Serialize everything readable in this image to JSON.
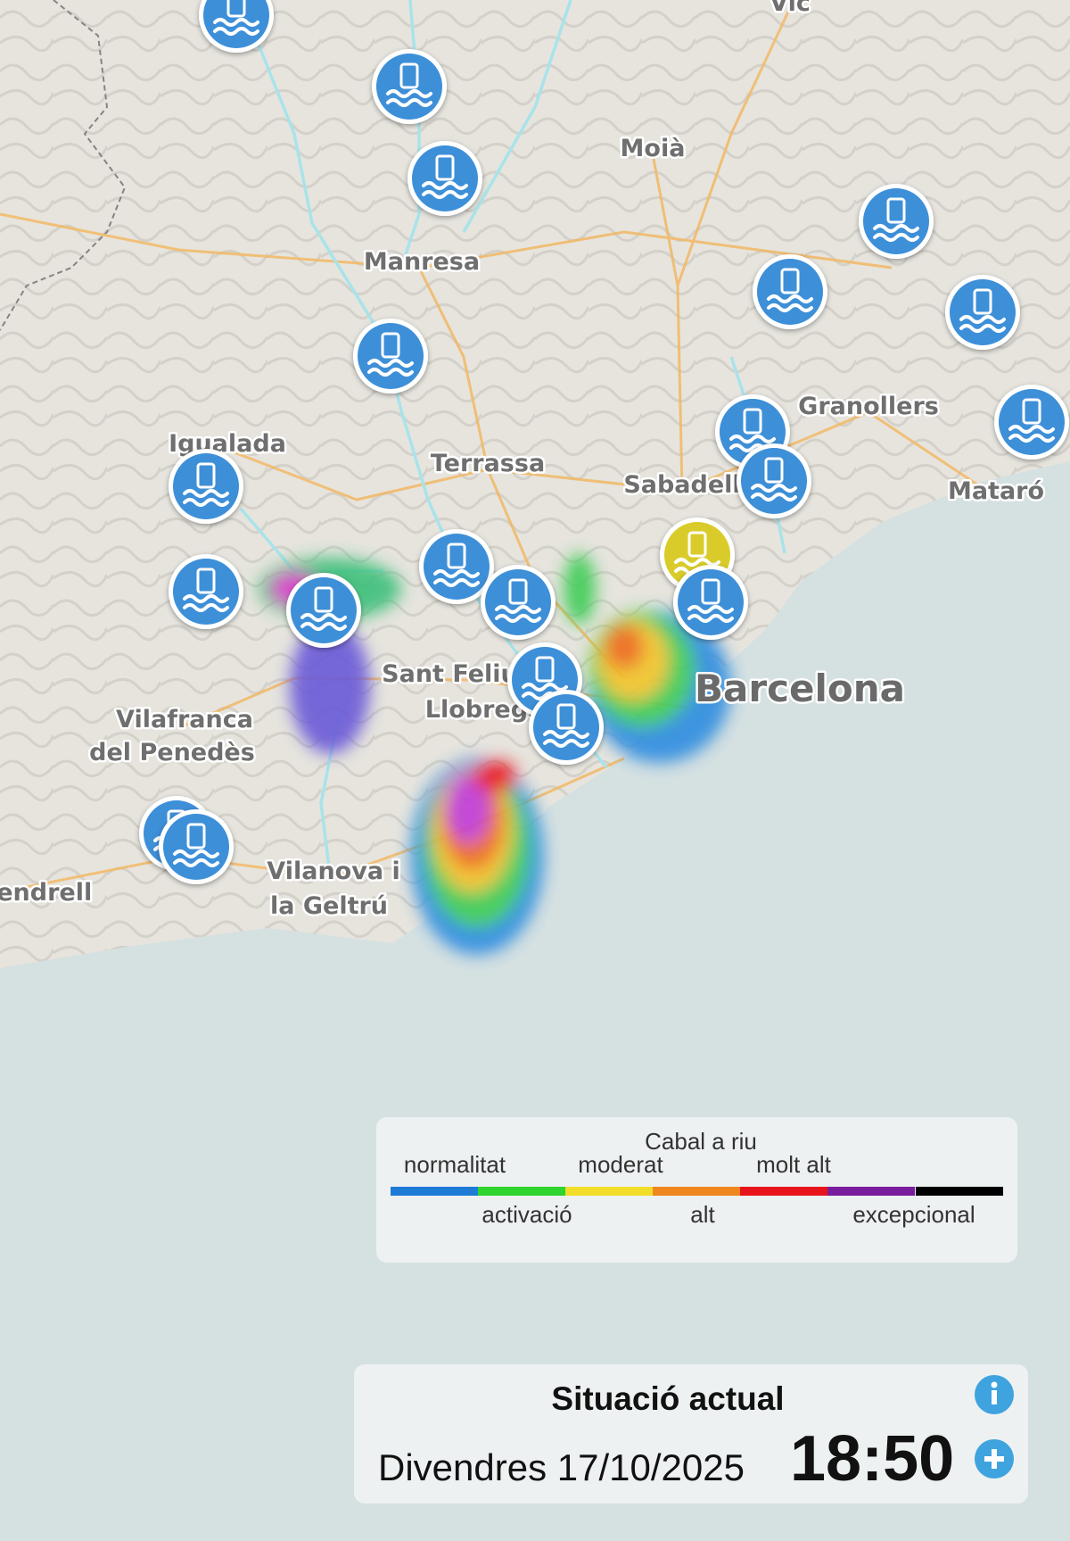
{
  "map": {
    "places": [
      "Vic",
      "Moià",
      "Manresa",
      "Igualada",
      "Terrassa",
      "Sabadell",
      "Granollers",
      "Mataró",
      "Barcelona",
      "Vilafranca",
      "del Penedès",
      "Sant Feliu de",
      "Llobregat",
      "Vilanova i",
      "la Geltrú",
      "Vendrell"
    ]
  },
  "legend": {
    "title": "Cabal a riu",
    "levels": [
      {
        "label": "normalitat",
        "color": "#1e7bd6"
      },
      {
        "label": "activació",
        "color": "#2fd42f"
      },
      {
        "label": "moderat",
        "color": "#f2dd2a"
      },
      {
        "label": "alt",
        "color": "#f0871e"
      },
      {
        "label": "molt alt",
        "color": "#e8141c"
      },
      {
        "label": "excepcional",
        "color": "#7a1d9c"
      }
    ]
  },
  "panel": {
    "title": "Situació actual",
    "date": "Divendres 17/10/2025",
    "time": "18:50"
  }
}
